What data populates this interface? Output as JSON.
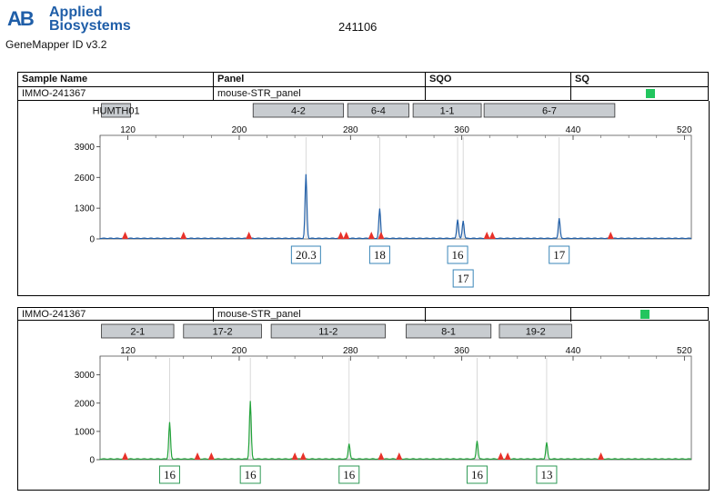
{
  "header": {
    "logo_line1": "Applied",
    "logo_line2": "Biosystems",
    "logo_mark": "AB",
    "software": "GeneMapper ID v3.2",
    "run_id": "241106"
  },
  "table": {
    "columns": [
      "Sample Name",
      "Panel",
      "SQO",
      "SQ"
    ],
    "sample_name": "IMMO-241367",
    "panel": "mouse-STR_panel",
    "sq_color": "#22c55e"
  },
  "chart_data": [
    {
      "type": "line",
      "dye": "blue",
      "color": "#1f5ea8",
      "sample_name": "IMMO-241367",
      "panel": "mouse-STR_panel",
      "markers": [
        {
          "name": "HUMTH01",
          "start": 101,
          "end": 122
        },
        {
          "name": "4-2",
          "start": 210,
          "end": 275
        },
        {
          "name": "6-4",
          "start": 278,
          "end": 322
        },
        {
          "name": "1-1",
          "start": 325,
          "end": 374
        },
        {
          "name": "6-7",
          "start": 376,
          "end": 470
        }
      ],
      "x_ticks": [
        120,
        200,
        280,
        360,
        440,
        520
      ],
      "y_ticks": [
        0,
        1300,
        2600,
        3900
      ],
      "xlim": [
        100,
        525
      ],
      "ylim": [
        0,
        4300
      ],
      "peaks": [
        {
          "x": 248,
          "height": 2700
        },
        {
          "x": 301,
          "height": 1250
        },
        {
          "x": 357,
          "height": 800
        },
        {
          "x": 361,
          "height": 750
        },
        {
          "x": 430,
          "height": 850
        }
      ],
      "allele_labels": [
        {
          "x": 248,
          "label": "20.3",
          "row": 0
        },
        {
          "x": 301,
          "label": "18",
          "row": 0
        },
        {
          "x": 357,
          "label": "16",
          "row": 0
        },
        {
          "x": 361,
          "label": "17",
          "row": 1
        },
        {
          "x": 430,
          "label": "17",
          "row": 0
        }
      ],
      "red_marks": [
        118,
        160,
        207,
        273,
        277,
        295,
        302,
        378,
        382,
        467
      ]
    },
    {
      "type": "line",
      "dye": "green",
      "color": "#22a33a",
      "sample_name": "IMMO-241367",
      "panel": "mouse-STR_panel",
      "markers": [
        {
          "name": "2-1",
          "start": 101,
          "end": 153
        },
        {
          "name": "17-2",
          "start": 160,
          "end": 216
        },
        {
          "name": "11-2",
          "start": 223,
          "end": 305
        },
        {
          "name": "8-1",
          "start": 320,
          "end": 381
        },
        {
          "name": "19-2",
          "start": 387,
          "end": 439
        }
      ],
      "x_ticks": [
        120,
        200,
        280,
        360,
        440,
        520
      ],
      "y_ticks": [
        0,
        1000,
        2000,
        3000
      ],
      "xlim": [
        100,
        525
      ],
      "ylim": [
        0,
        3600
      ],
      "peaks": [
        {
          "x": 150,
          "height": 1300
        },
        {
          "x": 208,
          "height": 2050
        },
        {
          "x": 279,
          "height": 550
        },
        {
          "x": 371,
          "height": 650
        },
        {
          "x": 421,
          "height": 580
        }
      ],
      "allele_labels": [
        {
          "x": 150,
          "label": "16"
        },
        {
          "x": 208,
          "label": "16"
        },
        {
          "x": 279,
          "label": "16"
        },
        {
          "x": 371,
          "label": "16"
        },
        {
          "x": 421,
          "label": "13"
        }
      ],
      "red_marks": [
        118,
        170,
        180,
        240,
        246,
        302,
        315,
        388,
        393,
        460
      ]
    }
  ]
}
